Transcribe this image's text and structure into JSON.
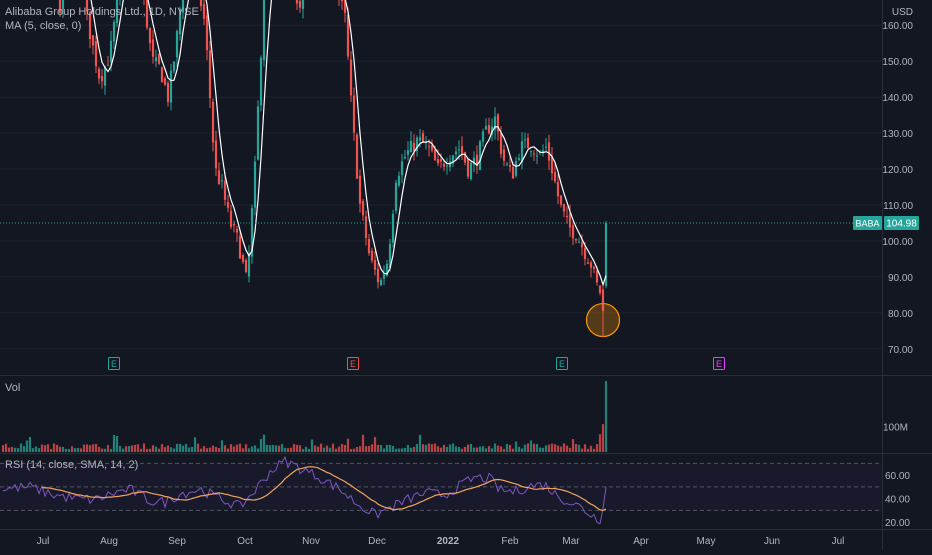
{
  "legend": {
    "symbol": "Alibaba Group Holdings Ltd., 1D, NYSE",
    "ma": "MA (5, close, 0)",
    "vol": "Vol",
    "rsi": "RSI (14, close, SMA, 14, 2)"
  },
  "colors": {
    "background": "#131722",
    "up": "#26a69a",
    "down": "#ef5350",
    "ma_line": "#ffffff",
    "rsi_line": "#7e57c2",
    "rsi_ma": "#f7a35c",
    "earnings_green": "#26a69a",
    "earnings_red": "#ef5350",
    "earnings_purple": "#e040fb",
    "price_tag": "#26a69a",
    "highlight_circle": "#ff9800"
  },
  "chart_data": [
    {
      "type": "candlestick",
      "name": "price",
      "currency": "USD",
      "ylim": [
        63,
        167
      ],
      "yticks": [
        70,
        80,
        90,
        100,
        110,
        120,
        130,
        140,
        150,
        160
      ],
      "ytick_labels": [
        "70.00",
        "80.00",
        "90.00",
        "100.00",
        "110.00",
        "120.00",
        "130.00",
        "140.00",
        "150.00",
        "160.00"
      ],
      "last_symbol": "BABA",
      "last_price": 104.98,
      "last_price_label": "104.98",
      "earnings": [
        {
          "date": "Aug 3",
          "label": "E",
          "color": "green"
        },
        {
          "date": "Nov 18",
          "label": "E",
          "color": "red"
        },
        {
          "date": "Feb 24",
          "label": "E",
          "color": "green"
        },
        {
          "date": "May 26",
          "label": "E",
          "color": "purple"
        }
      ],
      "highlight": {
        "date": "Mar 15",
        "low": 73.28
      }
    },
    {
      "type": "bar",
      "name": "volume",
      "ytick_labels": [
        "100M"
      ],
      "yticks_m": [
        100
      ]
    },
    {
      "type": "line",
      "name": "rsi",
      "ylim": [
        15,
        78
      ],
      "yticks": [
        20,
        40,
        60
      ],
      "ytick_labels": [
        "20.00",
        "40.00",
        "60.00"
      ],
      "bands": [
        30,
        50,
        70
      ]
    },
    {
      "type": "time-axis",
      "xticks": [
        "Jul",
        "Aug",
        "Sep",
        "Oct",
        "Nov",
        "Dec",
        "2022",
        "Feb",
        "Mar",
        "Apr",
        "May",
        "Jun",
        "Jul"
      ]
    }
  ]
}
